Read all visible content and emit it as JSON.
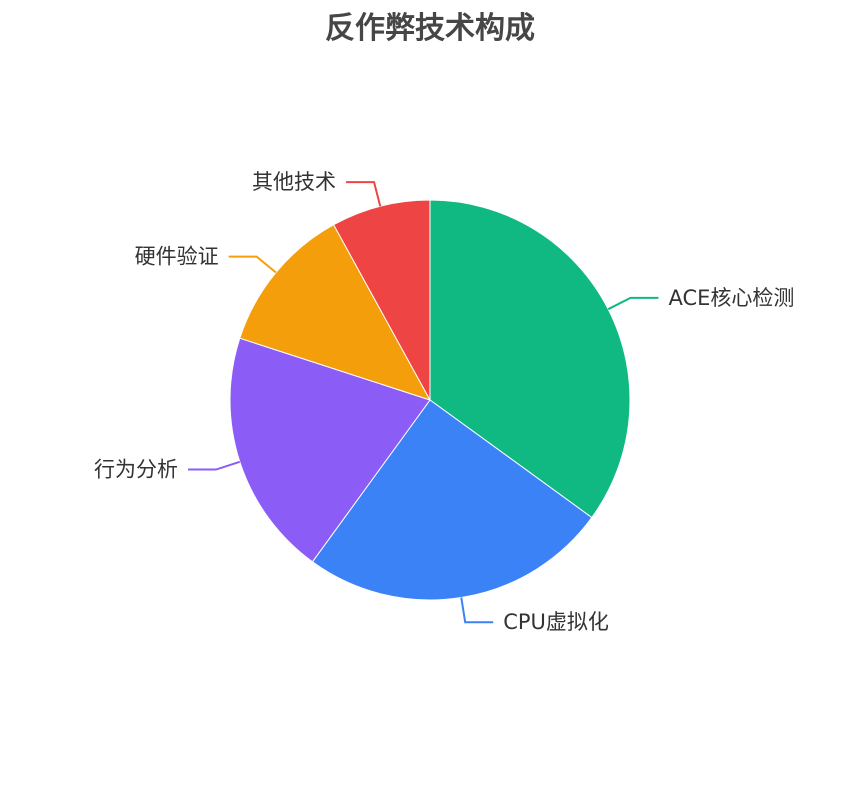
{
  "chart_data": {
    "type": "pie",
    "title": "反作弊技术构成",
    "start": "top",
    "direction": "clockwise",
    "legend": "none",
    "slices": [
      {
        "label": "ACE核心检测",
        "value": 35,
        "color": "#10b981"
      },
      {
        "label": "CPU虚拟化",
        "value": 25,
        "color": "#3b82f6"
      },
      {
        "label": "行为分析",
        "value": 20,
        "color": "#8b5cf6"
      },
      {
        "label": "硬件验证",
        "value": 12,
        "color": "#f59e0b"
      },
      {
        "label": "其他技术",
        "value": 8,
        "color": "#ef4444"
      }
    ]
  }
}
